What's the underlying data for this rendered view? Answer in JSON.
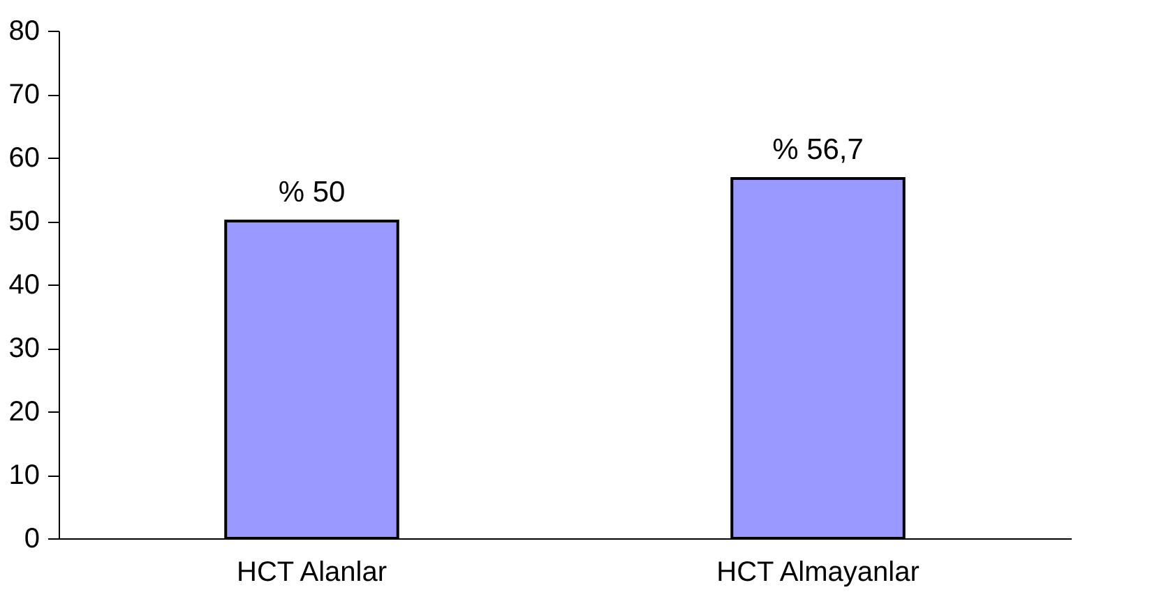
{
  "chart_data": {
    "type": "bar",
    "categories": [
      "HCT Alanlar",
      "HCT Almayanlar"
    ],
    "values": [
      50,
      56.7
    ],
    "value_labels": [
      "% 50",
      "% 56,7"
    ],
    "color": "#9999ff",
    "ylim": [
      0,
      80
    ],
    "yticks": [
      0,
      10,
      20,
      30,
      40,
      50,
      60,
      70,
      80
    ],
    "grid": false
  }
}
